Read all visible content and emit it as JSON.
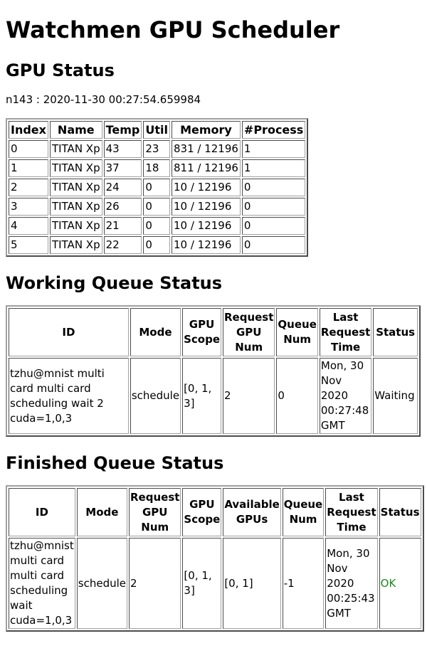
{
  "title": "Watchmen GPU Scheduler",
  "gpu_status": {
    "heading": "GPU Status",
    "host": "n143 : 2020-11-30 00:27:54.659984",
    "columns": [
      "Index",
      "Name",
      "Temp",
      "Util",
      "Memory",
      "#Process"
    ],
    "rows": [
      [
        "0",
        "TITAN Xp",
        "43",
        "23",
        "831 / 12196",
        "1"
      ],
      [
        "1",
        "TITAN Xp",
        "37",
        "18",
        "811 / 12196",
        "1"
      ],
      [
        "2",
        "TITAN Xp",
        "24",
        "0",
        "10 / 12196",
        "0"
      ],
      [
        "3",
        "TITAN Xp",
        "26",
        "0",
        "10 / 12196",
        "0"
      ],
      [
        "4",
        "TITAN Xp",
        "21",
        "0",
        "10 / 12196",
        "0"
      ],
      [
        "5",
        "TITAN Xp",
        "22",
        "0",
        "10 / 12196",
        "0"
      ]
    ]
  },
  "working_queue": {
    "heading": "Working Queue Status",
    "columns": [
      "ID",
      "Mode",
      "GPU Scope",
      "Request GPU Num",
      "Queue Num",
      "Last Request Time",
      "Status"
    ],
    "rows": [
      [
        "tzhu@mnist multi card multi card scheduling wait 2 cuda=1,0,3",
        "schedule",
        "[0, 1, 3]",
        "2",
        "0",
        "Mon, 30 Nov 2020 00:27:48 GMT",
        "Waiting"
      ]
    ]
  },
  "finished_queue": {
    "heading": "Finished Queue Status",
    "columns": [
      "ID",
      "Mode",
      "Request GPU Num",
      "GPU Scope",
      "Available GPUs",
      "Queue Num",
      "Last Request Time",
      "Status"
    ],
    "rows": [
      [
        "tzhu@mnist multi card multi card scheduling wait cuda=1,0,3",
        "schedule",
        "2",
        "[0, 1, 3]",
        "[0, 1]",
        "-1",
        "Mon, 30 Nov 2020 00:25:43 GMT",
        "OK"
      ]
    ],
    "ok_color": "#1a8a1a"
  }
}
